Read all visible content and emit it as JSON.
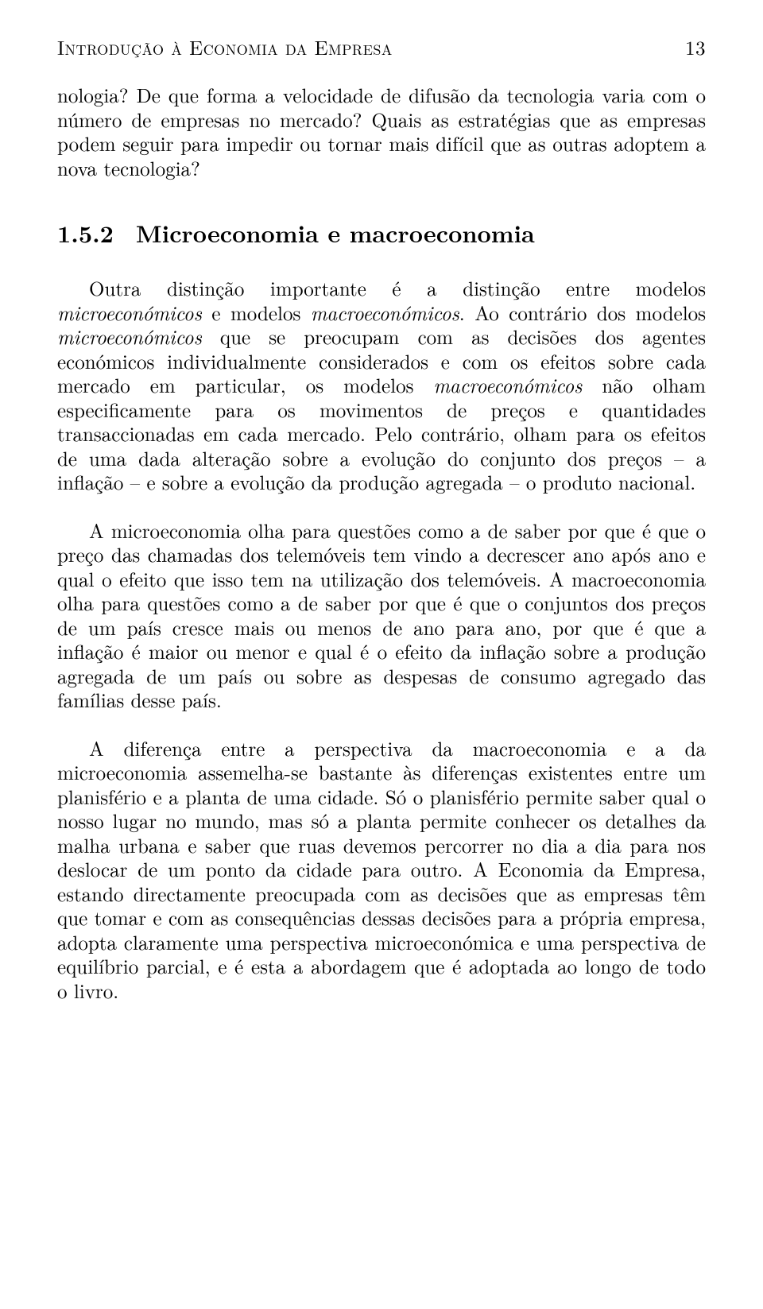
{
  "header": {
    "title": "Introdução à Economia da Empresa",
    "page_number": "13"
  },
  "para_intro": {
    "text_parts": [
      "nologia? De que forma a velocidade de difusão da tecnologia varia com o número de empresas no mercado? Quais as estratégias que as empresas podem seguir para impedir ou tornar mais difícil que as outras adoptem a nova tecnologia?"
    ]
  },
  "section": {
    "number": "1.5.2",
    "title": "Microeconomia e macroeconomia"
  },
  "para1": {
    "t1": "Outra distinção importante é a distinção entre modelos ",
    "i1": "microeconómicos",
    "t2": " e modelos ",
    "i2": "macroeconómicos",
    "t3": ". Ao contrário dos modelos ",
    "i3": "microeconómicos",
    "t4": " que se preocupam com as decisões dos agentes económicos individualmente considerados e com os efeitos sobre cada mercado em particular, os modelos ",
    "i4": "macroeconómicos",
    "t5": " não olham especificamente para os movimentos de preços e quantidades transaccionadas em cada mercado. Pelo contrário, olham para os efeitos de uma dada alteração sobre a evolução do conjunto dos preços – a inflação – e sobre a evolução da produção agregada – o produto nacional."
  },
  "para2": {
    "text": "A microeconomia olha para questões como a de saber por que é que o preço das chamadas dos telemóveis tem vindo a decrescer ano após ano e qual o efeito que isso tem na utilização dos telemóveis. A macroeconomia olha para questões como a de saber por que é que o conjuntos dos preços de um país cresce mais ou menos de ano para ano, por que é que a inflação é maior ou menor e qual é o efeito da inflação sobre a produção agregada de um país ou sobre as despesas de consumo agregado das famílias desse país."
  },
  "para3": {
    "text": "A diferença entre a perspectiva da macroeconomia e a da microeconomia assemelha-se bastante às diferenças existentes entre um planisfério e a planta de uma cidade. Só o planisfério permite saber qual o nosso lugar no mundo, mas só a planta permite conhecer os detalhes da malha urbana e saber que ruas devemos percorrer no dia a dia para nos deslocar de um ponto da cidade para outro. A Economia da Empresa, estando directamente preocupada com as decisões que as empresas têm que tomar e com as consequências dessas decisões para a própria empresa, adopta claramente uma perspectiva microeconómica e uma perspectiva de equilíbrio parcial, e é esta a abordagem que é adoptada ao longo de todo o livro."
  }
}
